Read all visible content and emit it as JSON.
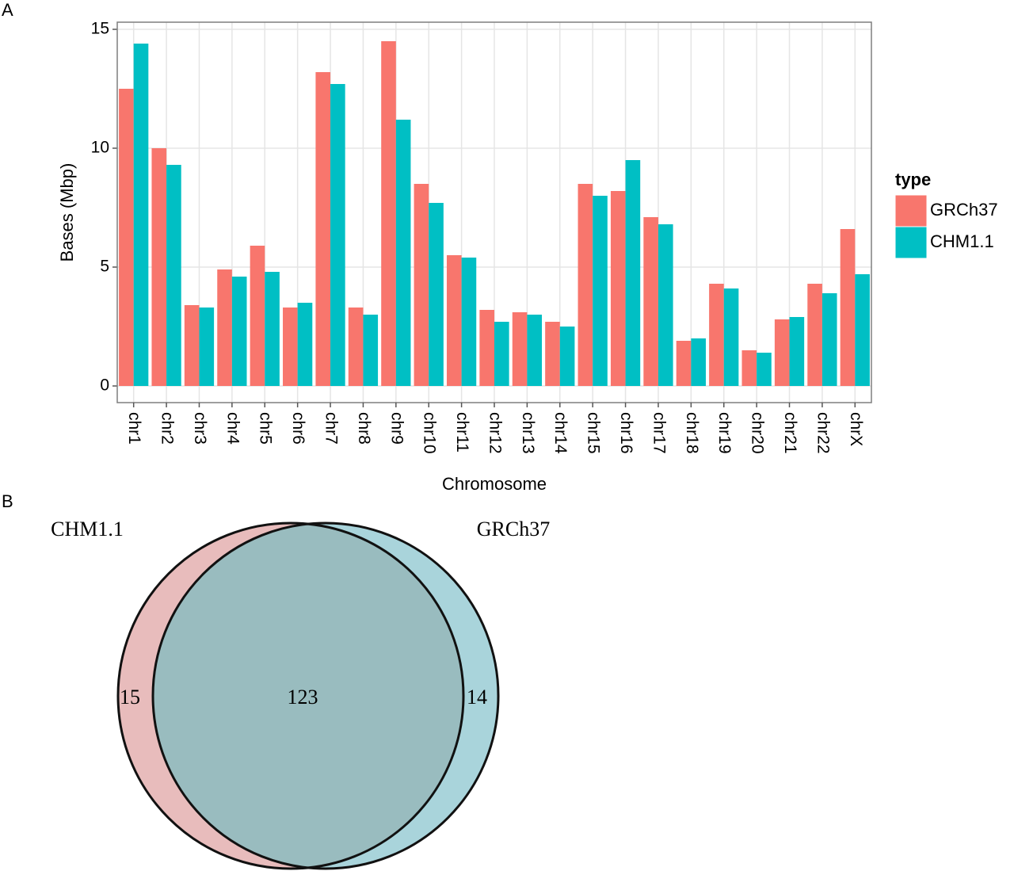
{
  "chart_data": [
    {
      "type": "bar",
      "panel_label": "A",
      "x_label": "Chromosome",
      "y_label": "Bases (Mbp)",
      "legend_title": "type",
      "categories": [
        "chr1",
        "chr2",
        "chr3",
        "chr4",
        "chr5",
        "chr6",
        "chr7",
        "chr8",
        "chr9",
        "chr10",
        "chr11",
        "chr12",
        "chr13",
        "chr14",
        "chr15",
        "chr16",
        "chr17",
        "chr18",
        "chr19",
        "chr20",
        "chr21",
        "chr22",
        "chrX"
      ],
      "series": [
        {
          "name": "GRCh37",
          "color": "#f8766d",
          "values": [
            12.5,
            10.0,
            3.4,
            4.9,
            5.9,
            3.3,
            13.2,
            3.3,
            14.5,
            8.5,
            5.5,
            3.2,
            3.1,
            2.7,
            8.5,
            8.2,
            7.1,
            1.9,
            4.3,
            1.5,
            2.8,
            4.3,
            6.6
          ]
        },
        {
          "name": "CHM1.1",
          "color": "#00bfc4",
          "values": [
            14.4,
            9.3,
            3.3,
            4.6,
            4.8,
            3.5,
            12.7,
            3.0,
            11.2,
            7.7,
            5.4,
            2.7,
            3.0,
            2.5,
            8.0,
            9.5,
            6.8,
            2.0,
            4.1,
            1.4,
            2.9,
            3.9,
            4.7
          ]
        }
      ],
      "ylim": [
        -0.7,
        15.3
      ],
      "yticks": [
        0,
        5,
        10,
        15
      ],
      "grid": true
    },
    {
      "type": "venn",
      "panel_label": "B",
      "sets": [
        {
          "name": "CHM1.1",
          "color": "#e8bcbc",
          "only": 15
        },
        {
          "name": "GRCh37",
          "color": "#a9d4db",
          "only": 14
        }
      ],
      "intersection": 123,
      "intersection_color": "#99bcbf"
    }
  ]
}
